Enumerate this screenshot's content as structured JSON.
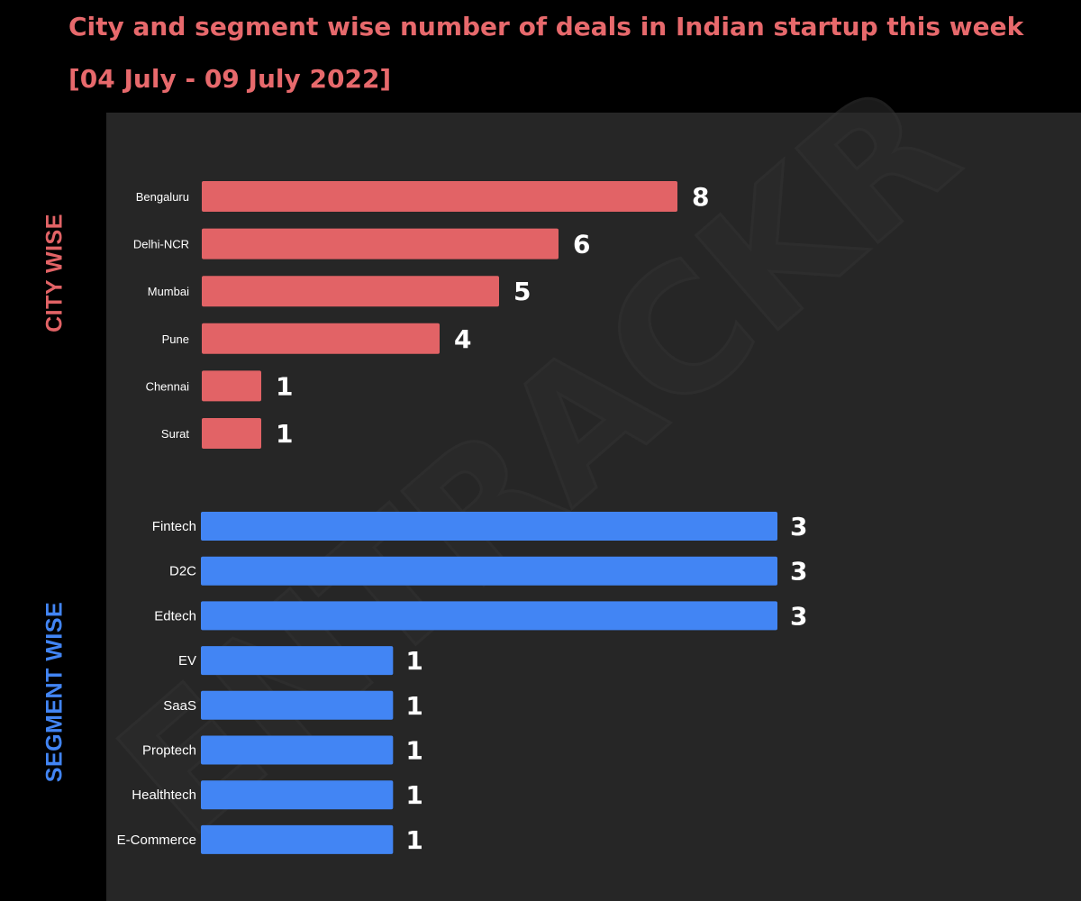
{
  "header": {
    "title_line1": "City and segment wise number of deals in Indian startup this week",
    "title_line2": "[04 July - 09 July 2022]"
  },
  "watermark": "ENTRACKR",
  "colors": {
    "city": "#e26366",
    "segment": "#4285f4",
    "panel": "#262626",
    "background": "#000000"
  },
  "chart_data": [
    {
      "type": "bar",
      "orientation": "horizontal",
      "section_label": "CITY WISE",
      "categories": [
        "Bengaluru",
        "Delhi-NCR",
        "Mumbai",
        "Pune",
        "Chennai",
        "Surat"
      ],
      "values": [
        8,
        6,
        5,
        4,
        1,
        1
      ],
      "xlim": [
        0,
        8
      ]
    },
    {
      "type": "bar",
      "orientation": "horizontal",
      "section_label": "SEGMENT WISE",
      "categories": [
        "Fintech",
        "D2C",
        "Edtech",
        "EV",
        "SaaS",
        "Proptech",
        "Healthtech",
        "E-Commerce"
      ],
      "values": [
        3,
        3,
        3,
        1,
        1,
        1,
        1,
        1
      ],
      "xlim": [
        0,
        3
      ]
    }
  ]
}
